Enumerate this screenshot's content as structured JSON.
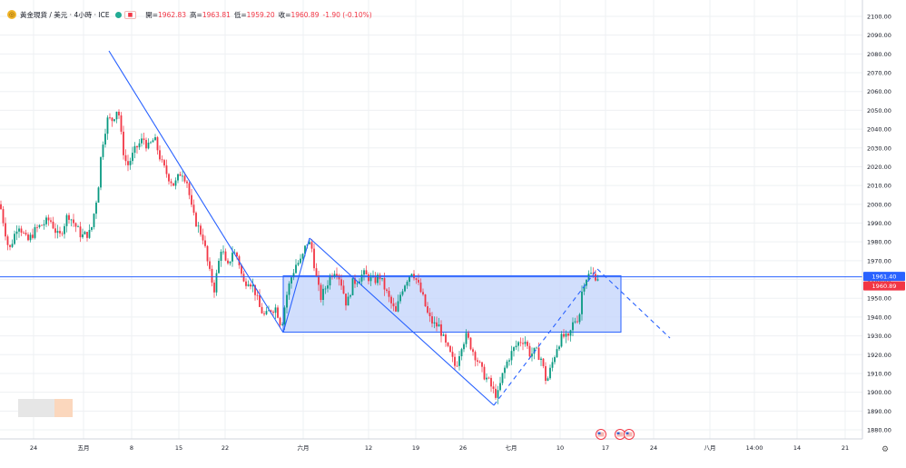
{
  "legend": {
    "symbol_title": "黃金現貨 / 美元 · 4小時 · ICE",
    "open_label": "開=",
    "open_value": "1962.83",
    "high_label": "高=",
    "high_value": "1963.81",
    "low_label": "低=",
    "low_value": "1959.20",
    "close_label": "收=",
    "close_value": "1960.89",
    "change": "-1.90 (-0.10%)"
  },
  "price_tags": {
    "line_price": "1961.40",
    "last_price": "1960.89"
  },
  "colors": {
    "up": "#089981",
    "down": "#f23645",
    "drawing": "#2962ff",
    "rect_fill": "#c5d6fb",
    "grid": "#eef0f3",
    "axis_text": "#131722"
  },
  "icons": [
    "gold-coin-icon",
    "us-flag-icon",
    "settings-gear-icon"
  ],
  "chart_data": {
    "type": "candlestick",
    "symbol": "XAUUSD",
    "timeframe": "4h",
    "ylim": [
      1875,
      2105
    ],
    "y_ticks": [
      1880,
      1890,
      1900,
      1910,
      1920,
      1930,
      1940,
      1950,
      1960,
      1970,
      1980,
      1990,
      2000,
      2010,
      2020,
      2030,
      2040,
      2050,
      2060,
      2070,
      2080,
      2090,
      2100
    ],
    "x_tick_labels": [
      "24",
      "五月",
      "8",
      "15",
      "22",
      "六月",
      "12",
      "19",
      "26",
      "七月",
      "10",
      "17",
      "24",
      "八月",
      "14:00",
      "14",
      "21"
    ],
    "price_path": [
      [
        0,
        2000
      ],
      [
        6,
        1985
      ],
      [
        10,
        1975
      ],
      [
        20,
        1990
      ],
      [
        30,
        1980
      ],
      [
        40,
        1987
      ],
      [
        55,
        1992
      ],
      [
        65,
        1982
      ],
      [
        75,
        1995
      ],
      [
        90,
        1983
      ],
      [
        100,
        1985
      ],
      [
        108,
        2008
      ],
      [
        112,
        2030
      ],
      [
        118,
        2045
      ],
      [
        124,
        2045
      ],
      [
        130,
        2052
      ],
      [
        135,
        2030
      ],
      [
        140,
        2020
      ],
      [
        145,
        2025
      ],
      [
        150,
        2030
      ],
      [
        158,
        2035
      ],
      [
        163,
        2030
      ],
      [
        170,
        2035
      ],
      [
        178,
        2022
      ],
      [
        185,
        2015
      ],
      [
        192,
        2010
      ],
      [
        200,
        2018
      ],
      [
        206,
        2012
      ],
      [
        212,
        1995
      ],
      [
        218,
        1988
      ],
      [
        224,
        1982
      ],
      [
        230,
        1965
      ],
      [
        236,
        1955
      ],
      [
        244,
        1978
      ],
      [
        250,
        1965
      ],
      [
        256,
        1975
      ],
      [
        262,
        1972
      ],
      [
        268,
        1958
      ],
      [
        274,
        1960
      ],
      [
        280,
        1955
      ],
      [
        286,
        1945
      ],
      [
        292,
        1940
      ],
      [
        298,
        1944
      ],
      [
        304,
        1945
      ],
      [
        310,
        1935
      ],
      [
        315,
        1950
      ],
      [
        320,
        1960
      ],
      [
        326,
        1968
      ],
      [
        332,
        1970
      ],
      [
        338,
        1980
      ],
      [
        343,
        1978
      ],
      [
        348,
        1962
      ],
      [
        353,
        1950
      ],
      [
        358,
        1955
      ],
      [
        364,
        1962
      ],
      [
        370,
        1966
      ],
      [
        376,
        1958
      ],
      [
        382,
        1946
      ],
      [
        388,
        1958
      ],
      [
        394,
        1960
      ],
      [
        400,
        1963
      ],
      [
        406,
        1961
      ],
      [
        412,
        1959
      ],
      [
        418,
        1962
      ],
      [
        424,
        1955
      ],
      [
        430,
        1948
      ],
      [
        436,
        1942
      ],
      [
        442,
        1954
      ],
      [
        448,
        1960
      ],
      [
        454,
        1965
      ],
      [
        460,
        1958
      ],
      [
        466,
        1950
      ],
      [
        472,
        1940
      ],
      [
        478,
        1936
      ],
      [
        484,
        1935
      ],
      [
        490,
        1926
      ],
      [
        496,
        1920
      ],
      [
        502,
        1913
      ],
      [
        508,
        1925
      ],
      [
        514,
        1930
      ],
      [
        520,
        1923
      ],
      [
        526,
        1917
      ],
      [
        532,
        1910
      ],
      [
        538,
        1906
      ],
      [
        544,
        1900
      ],
      [
        548,
        1898
      ],
      [
        554,
        1910
      ],
      [
        560,
        1918
      ],
      [
        566,
        1923
      ],
      [
        572,
        1927
      ],
      [
        578,
        1928
      ],
      [
        584,
        1920
      ],
      [
        590,
        1922
      ],
      [
        596,
        1918
      ],
      [
        602,
        1905
      ],
      [
        608,
        1915
      ],
      [
        614,
        1925
      ],
      [
        620,
        1930
      ],
      [
        626,
        1928
      ],
      [
        632,
        1938
      ],
      [
        638,
        1940
      ],
      [
        642,
        1958
      ],
      [
        646,
        1961
      ],
      [
        650,
        1963
      ],
      [
        655,
        1962
      ],
      [
        660,
        1961
      ]
    ],
    "drawings": {
      "horizontal_line": 1961.4,
      "range_box": {
        "top": 1962,
        "bottom": 1932
      },
      "trend_lines": [
        {
          "from": [
            1940,
            2080
          ],
          "to": [
            1961,
            1932
          ],
          "style": "solid"
        },
        {
          "from": [
            1961,
            1932
          ],
          "to": [
            1962,
            1983
          ],
          "style": "solid"
        },
        {
          "from": [
            1962,
            1983
          ],
          "to": [
            1963,
            1892
          ],
          "style": "solid"
        },
        {
          "from": [
            1963,
            1892
          ],
          "to": [
            1964,
            1966
          ],
          "style": "dashed"
        },
        {
          "from": [
            1964,
            1966
          ],
          "to": [
            1965,
            1930
          ],
          "style": "dashed"
        }
      ]
    }
  },
  "footer": {
    "settings_icon": "⚙"
  }
}
